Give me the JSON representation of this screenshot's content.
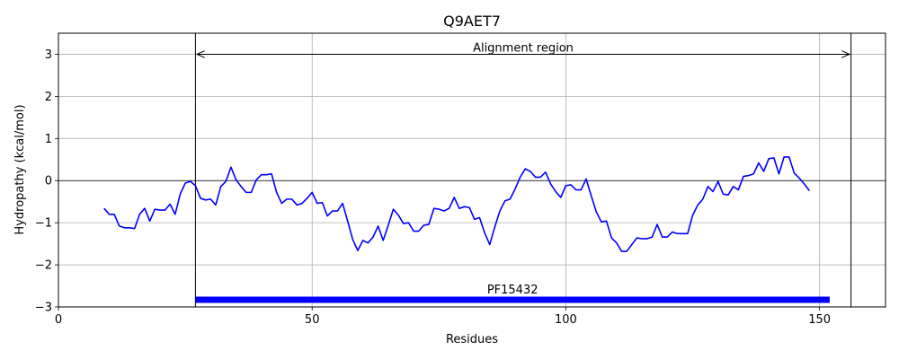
{
  "chart_data": {
    "type": "line",
    "title": "Q9AET7",
    "xlabel": "Residues",
    "ylabel": "Hydropathy (kcal/mol)",
    "xlim": [
      0,
      163
    ],
    "ylim": [
      -3,
      3.5
    ],
    "xticks": [
      0,
      50,
      100,
      150
    ],
    "yticks": [
      -3,
      -2,
      -1,
      0,
      1,
      2,
      3
    ],
    "grid": true,
    "series": [
      {
        "name": "hydropathy",
        "color": "#0000ff",
        "x": [
          9,
          10,
          11,
          12,
          13,
          14,
          15,
          16,
          17,
          18,
          19,
          20,
          21,
          22,
          23,
          24,
          25,
          26,
          27,
          28,
          29,
          30,
          31,
          32,
          33,
          34,
          35,
          36,
          37,
          38,
          39,
          40,
          41,
          42,
          43,
          44,
          45,
          46,
          47,
          48,
          49,
          50,
          51,
          52,
          53,
          54,
          55,
          56,
          57,
          58,
          59,
          60,
          61,
          62,
          63,
          64,
          65,
          66,
          67,
          68,
          69,
          70,
          71,
          72,
          73,
          74,
          75,
          76,
          77,
          78,
          79,
          80,
          81,
          82,
          83,
          84,
          85,
          86,
          87,
          88,
          89,
          90,
          91,
          92,
          93,
          94,
          95,
          96,
          97,
          98,
          99,
          100,
          101,
          102,
          103,
          104,
          105,
          106,
          107,
          108,
          109,
          110,
          111,
          112,
          113,
          114,
          115,
          116,
          117,
          118,
          119,
          120,
          121,
          122,
          123,
          124,
          125,
          126,
          127,
          128,
          129,
          130,
          131,
          132,
          133,
          134,
          135,
          136,
          137,
          138,
          139,
          140,
          141,
          142,
          143,
          144,
          145,
          146,
          147,
          148
        ],
        "y": [
          -0.66,
          -0.8,
          -0.8,
          -1.08,
          -1.12,
          -1.12,
          -1.14,
          -0.8,
          -0.66,
          -0.96,
          -0.68,
          -0.7,
          -0.7,
          -0.56,
          -0.8,
          -0.32,
          -0.06,
          -0.02,
          -0.12,
          -0.42,
          -0.46,
          -0.44,
          -0.58,
          -0.14,
          -0.02,
          0.32,
          0.02,
          -0.14,
          -0.28,
          -0.28,
          0.02,
          0.14,
          0.14,
          0.16,
          -0.28,
          -0.54,
          -0.44,
          -0.44,
          -0.58,
          -0.54,
          -0.42,
          -0.28,
          -0.54,
          -0.52,
          -0.84,
          -0.72,
          -0.72,
          -0.54,
          -0.96,
          -1.4,
          -1.66,
          -1.42,
          -1.48,
          -1.34,
          -1.08,
          -1.42,
          -1.06,
          -0.68,
          -0.82,
          -1.02,
          -1.0,
          -1.2,
          -1.2,
          -1.06,
          -1.04,
          -0.66,
          -0.68,
          -0.72,
          -0.66,
          -0.4,
          -0.66,
          -0.62,
          -0.64,
          -0.92,
          -0.88,
          -1.24,
          -1.52,
          -1.1,
          -0.72,
          -0.48,
          -0.44,
          -0.2,
          0.08,
          0.28,
          0.22,
          0.08,
          0.08,
          0.2,
          -0.08,
          -0.26,
          -0.4,
          -0.12,
          -0.1,
          -0.22,
          -0.22,
          0.04,
          -0.36,
          -0.74,
          -0.98,
          -0.96,
          -1.36,
          -1.48,
          -1.68,
          -1.68,
          -1.52,
          -1.36,
          -1.38,
          -1.38,
          -1.34,
          -1.04,
          -1.34,
          -1.34,
          -1.22,
          -1.26,
          -1.26,
          -1.26,
          -0.82,
          -0.58,
          -0.44,
          -0.14,
          -0.26,
          -0.02,
          -0.32,
          -0.34,
          -0.14,
          -0.22,
          0.1,
          0.12,
          0.16,
          0.42,
          0.22,
          0.52,
          0.54,
          0.16,
          0.56,
          0.56,
          0.18,
          0.06,
          -0.08,
          -0.24
        ]
      }
    ],
    "hline": 0,
    "region_lines_x": [
      27,
      156.2
    ],
    "alignment_arrow": {
      "x_start": 27.3,
      "x_end": 155.9,
      "y": 3.0,
      "label": "Alignment region"
    },
    "domain_bar": {
      "x_start": 27,
      "x_end": 152,
      "y": -2.83,
      "label": "PF15432",
      "color": "#0000ff"
    }
  }
}
